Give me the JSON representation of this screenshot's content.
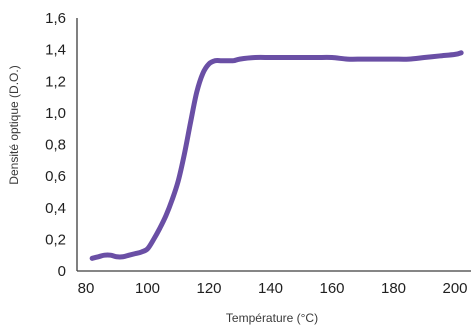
{
  "chart_data": {
    "type": "line",
    "xlabel": "Température (°C)",
    "ylabel": "Densité optique (D.O.)",
    "xlim": [
      80,
      200
    ],
    "ylim": [
      0,
      1.6
    ],
    "x_ticks": [
      80,
      100,
      120,
      140,
      160,
      180,
      200
    ],
    "x_tick_labels": [
      "80",
      "100",
      "120",
      "140",
      "160",
      "180",
      "200"
    ],
    "y_ticks": [
      0,
      0.2,
      0.4,
      0.6,
      0.8,
      1.0,
      1.2,
      1.4,
      1.6
    ],
    "y_tick_labels": [
      "0",
      "0,2",
      "0,4",
      "0,6",
      "0,8",
      "1,0",
      "1,2",
      "1,4",
      "1,6"
    ],
    "grid": false,
    "legend": false,
    "series": [
      {
        "color": "#6a4fa5",
        "x": [
          82,
          84,
          86,
          88,
          90,
          92,
          94,
          96,
          98,
          100,
          102,
          104,
          106,
          108,
          110,
          112,
          114,
          116,
          118,
          120,
          122,
          124,
          126,
          128,
          130,
          135,
          140,
          145,
          150,
          155,
          160,
          165,
          170,
          175,
          180,
          185,
          190,
          195,
          200,
          202
        ],
        "y": [
          0.08,
          0.09,
          0.1,
          0.1,
          0.09,
          0.09,
          0.1,
          0.11,
          0.12,
          0.14,
          0.2,
          0.27,
          0.35,
          0.45,
          0.57,
          0.74,
          0.94,
          1.13,
          1.25,
          1.31,
          1.33,
          1.33,
          1.33,
          1.33,
          1.34,
          1.35,
          1.35,
          1.35,
          1.35,
          1.35,
          1.35,
          1.34,
          1.34,
          1.34,
          1.34,
          1.34,
          1.35,
          1.36,
          1.37,
          1.38
        ]
      }
    ]
  }
}
